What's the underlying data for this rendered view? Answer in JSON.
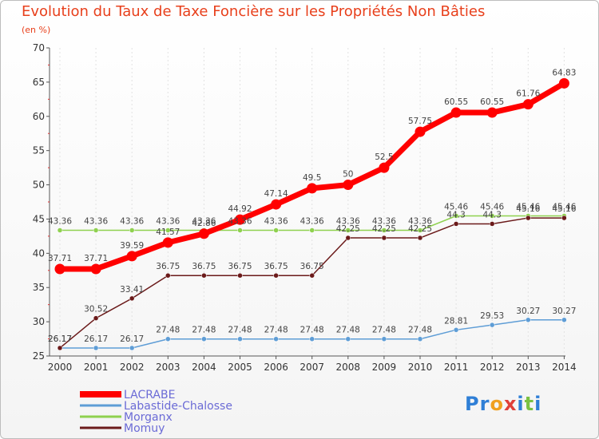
{
  "logo": {
    "letters": [
      {
        "ch": "P",
        "color": "#2f7fd6"
      },
      {
        "ch": "r",
        "color": "#2f7fd6"
      },
      {
        "ch": "o",
        "color": "#f0a020"
      },
      {
        "ch": "x",
        "color": "#e0403a"
      },
      {
        "ch": "i",
        "color": "#2f7fd6"
      },
      {
        "ch": "t",
        "color": "#7ac143"
      },
      {
        "ch": "i",
        "color": "#2f7fd6"
      }
    ]
  },
  "chart_data": {
    "type": "line",
    "title": "Evolution du Taux de Taxe Foncière sur les Propriétés Non Bâties",
    "subtitle": "(en %)",
    "xlabel": "",
    "ylabel": "",
    "x": [
      "2000",
      "2001",
      "2002",
      "2003",
      "2004",
      "2005",
      "2006",
      "2007",
      "2008",
      "2009",
      "2010",
      "2011",
      "2012",
      "2013",
      "2014"
    ],
    "ylim": [
      25,
      70
    ],
    "yticks": [
      25,
      30,
      35,
      40,
      45,
      50,
      55,
      60,
      65,
      70
    ],
    "legend_placement": "bottom-left",
    "series": [
      {
        "name": "LACRABE",
        "color": "#ff0000",
        "emphasis": true,
        "values": [
          37.71,
          37.71,
          39.59,
          41.57,
          42.86,
          44.92,
          47.14,
          49.5,
          50,
          52.5,
          57.75,
          60.55,
          60.55,
          61.76,
          64.83
        ],
        "labels": [
          "37.71",
          "37.71",
          "39.59",
          "41.57",
          "42.86",
          "44.92",
          "47.14",
          "49.5",
          "50",
          "52.5",
          "57.75",
          "60.55",
          "60.55",
          "61.76",
          "64.83"
        ]
      },
      {
        "name": "Labastide-Chalosse",
        "color": "#5e9dd6",
        "emphasis": false,
        "values": [
          26.17,
          26.17,
          26.17,
          27.48,
          27.48,
          27.48,
          27.48,
          27.48,
          27.48,
          27.48,
          27.48,
          28.81,
          29.53,
          30.27,
          30.27
        ],
        "labels": [
          "26.17",
          "26.17",
          "26.17",
          "27.48",
          "27.48",
          "27.48",
          "27.48",
          "27.48",
          "27.48",
          "27.48",
          "27.48",
          "28.81",
          "29.53",
          "30.27",
          "30.27"
        ]
      },
      {
        "name": "Morganx",
        "color": "#8fd14f",
        "emphasis": false,
        "values": [
          43.36,
          43.36,
          43.36,
          43.36,
          43.36,
          43.36,
          43.36,
          43.36,
          43.36,
          43.36,
          43.36,
          45.46,
          45.46,
          45.46,
          45.46
        ],
        "labels": [
          "43.36",
          "43.36",
          "43.36",
          "43.36",
          "43.36",
          "43.36",
          "43.36",
          "43.36",
          "43.36",
          "43.36",
          "43.36",
          "45.46",
          "45.46",
          "45.46",
          "45.46"
        ]
      },
      {
        "name": "Momuy",
        "color": "#6b1a1a",
        "emphasis": false,
        "values": [
          26.17,
          30.52,
          33.41,
          36.75,
          36.75,
          36.75,
          36.75,
          36.75,
          42.25,
          42.25,
          42.25,
          44.3,
          44.3,
          45.16,
          45.16
        ],
        "labels": [
          "26.17",
          "30.52",
          "33.41",
          "36.75",
          "36.75",
          "36.75",
          "36.75",
          "36.75",
          "42.25",
          "42.25",
          "42.25",
          "44.3",
          "44.3",
          "45.16",
          "45.16"
        ]
      }
    ]
  }
}
